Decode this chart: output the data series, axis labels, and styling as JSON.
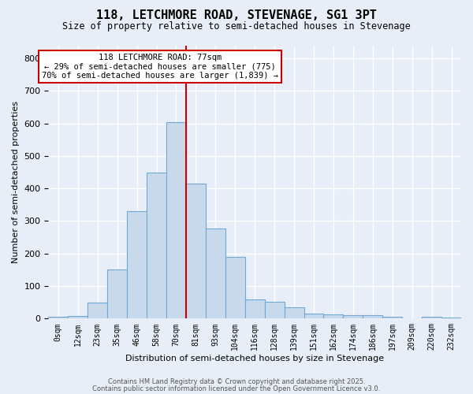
{
  "title": "118, LETCHMORE ROAD, STEVENAGE, SG1 3PT",
  "subtitle": "Size of property relative to semi-detached houses in Stevenage",
  "xlabel": "Distribution of semi-detached houses by size in Stevenage",
  "ylabel": "Number of semi-detached properties",
  "bar_labels": [
    "0sqm",
    "12sqm",
    "23sqm",
    "35sqm",
    "46sqm",
    "58sqm",
    "70sqm",
    "81sqm",
    "93sqm",
    "104sqm",
    "116sqm",
    "128sqm",
    "139sqm",
    "151sqm",
    "162sqm",
    "174sqm",
    "186sqm",
    "197sqm",
    "209sqm",
    "220sqm",
    "232sqm"
  ],
  "bar_values": [
    5,
    8,
    50,
    150,
    330,
    450,
    605,
    415,
    278,
    190,
    58,
    52,
    35,
    15,
    12,
    10,
    10,
    5,
    0,
    5,
    4
  ],
  "bar_color": "#c9d9ec",
  "bar_edge_color": "#6fa8d0",
  "background_color": "#e8eef7",
  "grid_color": "#ffffff",
  "property_size": 77,
  "annotation_title": "118 LETCHMORE ROAD: 77sqm",
  "annotation_line1": "← 29% of semi-detached houses are smaller (775)",
  "annotation_line2": "70% of semi-detached houses are larger (1,839) →",
  "annotation_box_color": "#ffffff",
  "annotation_box_edge": "#cc0000",
  "vline_color": "#cc0000",
  "vline_pos": 6.5,
  "footer1": "Contains HM Land Registry data © Crown copyright and database right 2025.",
  "footer2": "Contains public sector information licensed under the Open Government Licence v3.0.",
  "ylim": [
    0,
    840
  ],
  "yticks": [
    0,
    100,
    200,
    300,
    400,
    500,
    600,
    700,
    800
  ]
}
